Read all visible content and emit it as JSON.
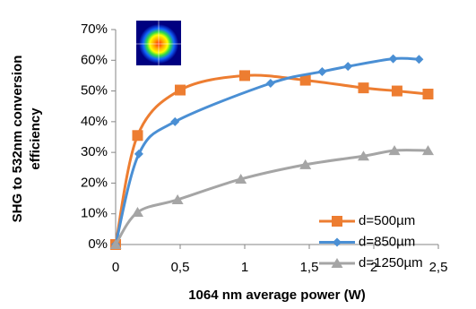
{
  "chart_data": {
    "type": "line",
    "x_label": "1064 nm average power (W)",
    "y_label": [
      "SHG to 532nm conversion",
      "efficiency"
    ],
    "xlim": [
      0,
      2.5
    ],
    "xticks": [
      0,
      {
        "value": 0.5,
        "label": "0,5"
      },
      1,
      {
        "value": 1.5,
        "label": "1,5"
      },
      2,
      {
        "value": 2.5,
        "label": "2,5"
      }
    ],
    "ylim": [
      0,
      70
    ],
    "yticks": [
      {
        "value": 0,
        "label": "0%"
      },
      {
        "value": 10,
        "label": "10%"
      },
      {
        "value": 20,
        "label": "20%"
      },
      {
        "value": 30,
        "label": "30%"
      },
      {
        "value": 40,
        "label": "40%"
      },
      {
        "value": 50,
        "label": "50%"
      },
      {
        "value": 60,
        "label": "60%"
      },
      {
        "value": 70,
        "label": "70%"
      }
    ],
    "grid": false,
    "legend": "right-bottom",
    "series": [
      {
        "name": "d=500µm",
        "color": "#ED7D31",
        "marker": "square",
        "x": [
          0,
          0.17,
          0.5,
          1.0,
          1.47,
          1.92,
          2.18,
          2.42
        ],
        "values": [
          0,
          35.5,
          50.3,
          55,
          53.5,
          51,
          50,
          49
        ]
      },
      {
        "name": "d=850µm",
        "color": "#4A8FD4",
        "marker": "diamond",
        "x": [
          0,
          0.18,
          0.46,
          1.2,
          1.6,
          1.8,
          2.15,
          2.35
        ],
        "values": [
          0,
          29.5,
          40,
          52.5,
          56.3,
          58,
          60.5,
          60.3
        ]
      },
      {
        "name": "d=1250µm",
        "color": "#A5A5A5",
        "marker": "triangle",
        "x": [
          0,
          0.17,
          0.48,
          0.97,
          1.47,
          1.92,
          2.16,
          2.42
        ],
        "values": [
          0,
          10.5,
          14.6,
          21.3,
          26,
          28.8,
          30.6,
          30.6
        ]
      }
    ]
  }
}
